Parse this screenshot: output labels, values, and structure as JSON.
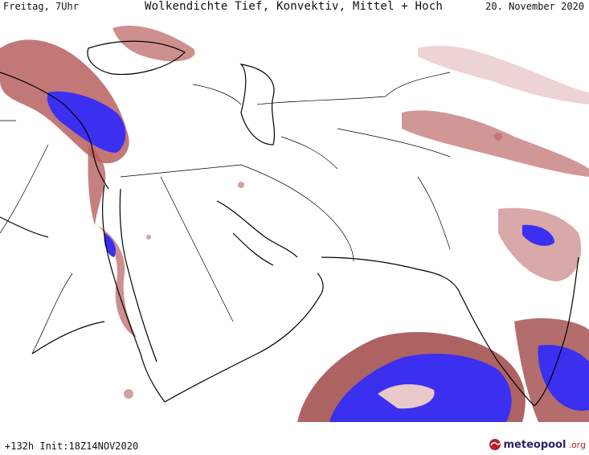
{
  "header": {
    "day_time": "Freitag, 7Uhr",
    "title": "Wolkendichte  Tief, Konvektiv, Mittel + Hoch",
    "date": "20. November 2020"
  },
  "footer": {
    "run_info": "+132h Init:18Z14NOV2020",
    "logo_name": "meteopool",
    "logo_tld": ".org"
  },
  "colors": {
    "cloud_low": "#e8c8c8",
    "cloud_mid": "#a04848",
    "cloud_high": "#3b2ff0",
    "border": "#000000"
  }
}
